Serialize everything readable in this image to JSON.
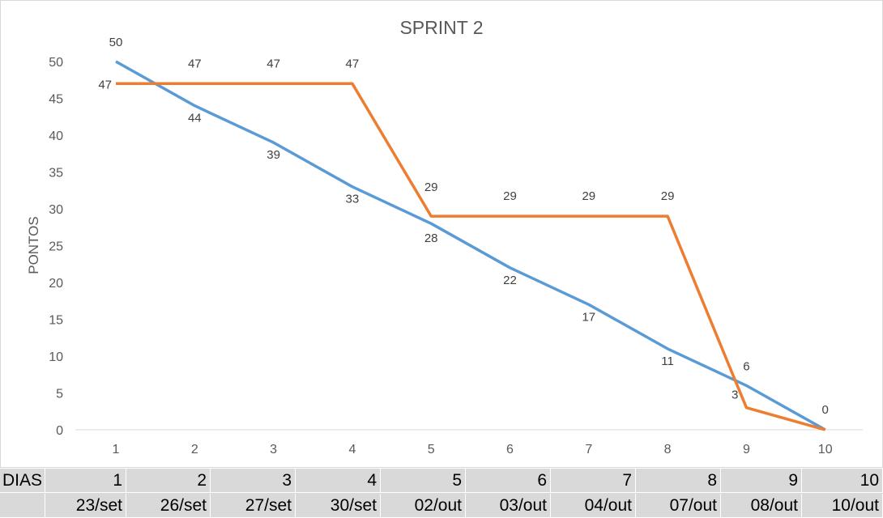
{
  "chart_data": {
    "type": "line",
    "title": "SPRINT 2",
    "ylabel": "PONTOS",
    "xlabel": "",
    "x": [
      1,
      2,
      3,
      4,
      5,
      6,
      7,
      8,
      9,
      10
    ],
    "ylim": [
      0,
      50
    ],
    "yticks": [
      0,
      5,
      10,
      15,
      20,
      25,
      30,
      35,
      40,
      45,
      50
    ],
    "grid": "none",
    "legend": "none",
    "series": [
      {
        "color": "#5B9BD5",
        "values": [
          50,
          44,
          39,
          33,
          28,
          22,
          17,
          11,
          6,
          0
        ]
      },
      {
        "color": "#ED7D31",
        "values": [
          47,
          47,
          47,
          47,
          29,
          29,
          29,
          29,
          3,
          0
        ]
      }
    ]
  },
  "sheet": {
    "row1_label": "DIAS",
    "days": [
      "1",
      "2",
      "3",
      "4",
      "5",
      "6",
      "7",
      "8",
      "9",
      "10"
    ],
    "dates": [
      "23/set",
      "26/set",
      "27/set",
      "30/set",
      "02/out",
      "03/out",
      "04/out",
      "07/out",
      "08/out",
      "10/out"
    ]
  }
}
